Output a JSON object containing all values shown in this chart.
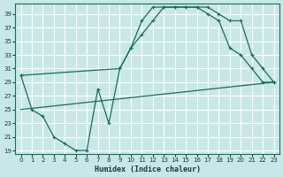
{
  "xlabel": "Humidex (Indice chaleur)",
  "bg_color": "#c8e8e8",
  "grid_color": "#ffffff",
  "line_color": "#1a6b5a",
  "xlim": [
    -0.5,
    23.5
  ],
  "ylim": [
    18.5,
    40.5
  ],
  "yticks": [
    19,
    21,
    23,
    25,
    27,
    29,
    31,
    33,
    35,
    37,
    39
  ],
  "xticks": [
    0,
    1,
    2,
    3,
    4,
    5,
    6,
    7,
    8,
    9,
    10,
    11,
    12,
    13,
    14,
    15,
    16,
    17,
    18,
    19,
    20,
    21,
    22,
    23
  ],
  "line1_x": [
    0,
    1,
    2,
    3,
    4,
    5,
    6,
    7,
    8,
    9,
    10,
    11,
    12,
    13,
    14,
    15,
    16,
    17,
    18,
    19,
    20,
    21,
    22,
    23
  ],
  "line1_y": [
    30,
    25,
    24,
    21,
    20,
    19,
    19,
    28,
    23,
    31,
    34,
    38,
    40,
    40,
    40,
    40,
    40,
    39,
    38,
    34,
    33,
    31,
    29,
    29
  ],
  "line2_x": [
    0,
    23
  ],
  "line2_y": [
    25,
    29
  ],
  "line3_x": [
    0,
    9,
    10,
    11,
    12,
    13,
    14,
    15,
    16,
    17,
    18,
    19,
    20,
    21,
    22,
    23
  ],
  "line3_y": [
    30,
    31,
    34,
    36,
    38,
    40,
    40,
    40,
    40,
    40,
    39,
    38,
    38,
    33,
    31,
    29
  ]
}
